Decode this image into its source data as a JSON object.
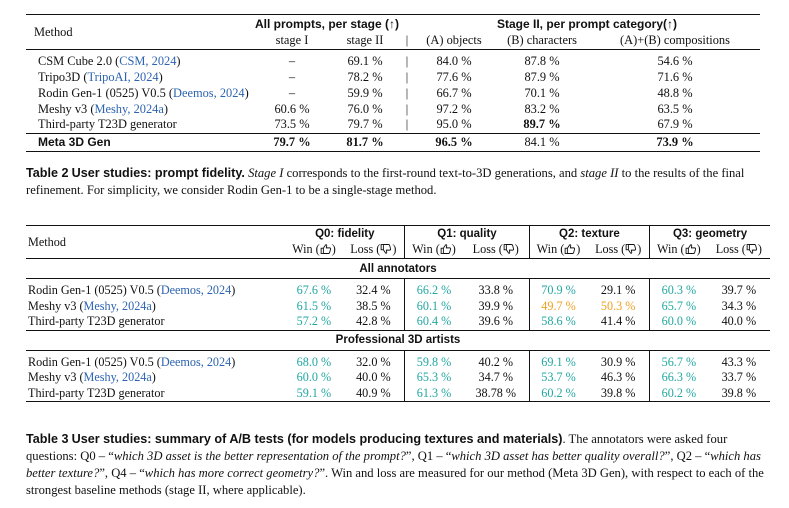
{
  "table2": {
    "header_method": "Method",
    "group_all": "All prompts, per stage (↑)",
    "group_stage2": "Stage II, per prompt category(↑)",
    "sub_stage1": "stage I",
    "sub_stage2": "stage II",
    "sub_objects": "(A) objects",
    "sub_characters": "(B) characters",
    "sub_compositions": "(A)+(B) compositions",
    "rows": [
      {
        "name": "CSM Cube 2.0 (",
        "cite": "CSM, 2024",
        "close": ")",
        "s1": "–",
        "s2": "69.1 %",
        "obj": "84.0 %",
        "chr": "87.8 %",
        "comp": "54.6 %"
      },
      {
        "name": "Tripo3D (",
        "cite": "TripoAI, 2024",
        "close": ")",
        "s1": "–",
        "s2": "78.2 %",
        "obj": "77.6 %",
        "chr": "87.9 %",
        "comp": "71.6 %"
      },
      {
        "name": "Rodin Gen-1 (0525) V0.5 (",
        "cite": "Deemos, 2024",
        "close": ")",
        "s1": "–",
        "s2": "59.9 %",
        "obj": "66.7 %",
        "chr": "70.1 %",
        "comp": "48.8 %"
      },
      {
        "name": "Meshy v3 (",
        "cite": "Meshy, 2024a",
        "close": ")",
        "s1": "60.6 %",
        "s2": "76.0 %",
        "obj": "97.2 %",
        "chr": "83.2 %",
        "comp": "63.5 %"
      },
      {
        "name": "Third-party T23D generator",
        "cite": "",
        "close": "",
        "s1": "73.5 %",
        "s2": "79.7 %",
        "obj": "95.0 %",
        "chr": "89.7 %",
        "comp": "67.9 %"
      }
    ],
    "ours": {
      "name": "Meta 3D Gen",
      "s1": "79.7 %",
      "s2": "81.7 %",
      "obj": "96.5 %",
      "chr": "84.1 %",
      "comp": "73.9 %"
    },
    "caption_label": "Table 2",
    "caption_title": "User studies: prompt fidelity.",
    "caption_text_1": "Stage I",
    "caption_text_2": " corresponds to the first-round text-to-3D generations, and ",
    "caption_text_3": "stage II",
    "caption_text_4": " to the results of the final refinement. For simplicity, we consider Rodin Gen-1 to be a single-stage method."
  },
  "table3": {
    "header_method": "Method",
    "q0": "Q0: fidelity",
    "q1": "Q1: quality",
    "q2": "Q2: texture",
    "q3": "Q3: geometry",
    "win": "Win (",
    "loss": "Loss (",
    "close": ")",
    "section_all": "All annotators",
    "section_pro": "Professional 3D artists",
    "all_rows": [
      {
        "name": "Rodin Gen-1 (0525) V0.5 (",
        "cite": "Deemos, 2024",
        "close": ")",
        "v": [
          "67.6 %",
          "32.4 %",
          "66.2 %",
          "33.8 %",
          "70.9 %",
          "29.1 %",
          "60.3 %",
          "39.7 %"
        ]
      },
      {
        "name": "Meshy v3 (",
        "cite": "Meshy, 2024a",
        "close": ")",
        "v": [
          "61.5 %",
          "38.5 %",
          "60.1 %",
          "39.9 %",
          "49.7 %",
          "50.3 %",
          "65.7 %",
          "34.3 %"
        ]
      },
      {
        "name": "Third-party T23D generator",
        "cite": "",
        "close": "",
        "v": [
          "57.2 %",
          "42.8 %",
          "60.4 %",
          "39.6 %",
          "58.6 %",
          "41.4 %",
          "60.0 %",
          "40.0 %"
        ]
      }
    ],
    "pro_rows": [
      {
        "name": "Rodin Gen-1 (0525) V0.5 (",
        "cite": "Deemos, 2024",
        "close": ")",
        "v": [
          "68.0 %",
          "32.0 %",
          "59.8 %",
          "40.2 %",
          "69.1 %",
          "30.9 %",
          "56.7 %",
          "43.3 %"
        ]
      },
      {
        "name": "Meshy v3 (",
        "cite": "Meshy, 2024a",
        "close": ")",
        "v": [
          "60.0 %",
          "40.0 %",
          "65.3 %",
          "34.7 %",
          "53.7 %",
          "46.3 %",
          "66.3 %",
          "33.7 %"
        ]
      },
      {
        "name": "Third-party T23D generator",
        "cite": "",
        "close": "",
        "v": [
          "59.1 %",
          "40.9 %",
          "61.3 %",
          "38.78 %",
          "60.2 %",
          "39.8 %",
          "60.2 %",
          "39.8 %"
        ]
      }
    ],
    "caption_label": "Table 3",
    "caption_title": "User studies: summary of A/B tests (for models producing textures and materials)",
    "caption_p1": ". The annotators were asked four questions: Q0 – “",
    "caption_q0": "which 3D asset is the better representation of the prompt?",
    "caption_p2": "”, Q1 – “",
    "caption_q1": "which 3D asset has better quality overall?",
    "caption_p3": "”, Q2 – “",
    "caption_q2": "which has better texture?",
    "caption_p4": "”, Q4 – “",
    "caption_q4": "which has more correct geometry?",
    "caption_p5": "”. Win and loss are measured for our method (Meta 3D Gen), with respect to each of the strongest baseline methods (stage II, where applicable)."
  },
  "colors": {
    "link": "#2d63b0",
    "win_green": "#22a8a2",
    "tie_orange": "#f0a020"
  },
  "icons": {
    "win": "thumbs-up-icon",
    "loss": "thumbs-down-icon",
    "arrow": "up-arrow"
  }
}
